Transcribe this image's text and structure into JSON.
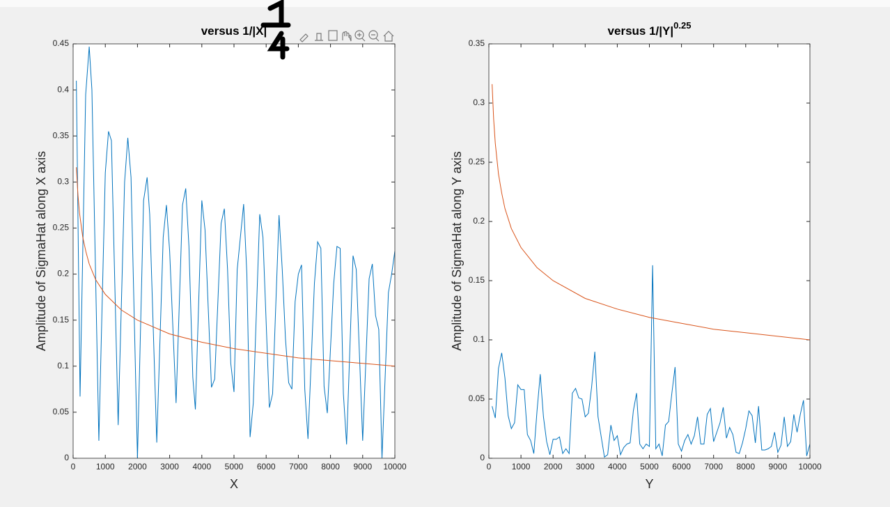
{
  "chart_data": [
    {
      "type": "line",
      "title": "versus 1/|X|",
      "xlabel": "X",
      "ylabel": "Amplitude of SigmaHat along X axis",
      "xlim": [
        0,
        10000
      ],
      "xticks": [
        0,
        1000,
        2000,
        3000,
        4000,
        5000,
        6000,
        7000,
        8000,
        9000,
        10000
      ],
      "ylim": [
        0,
        0.45
      ],
      "yticks": [
        0,
        0.05,
        0.1,
        0.15,
        0.2,
        0.25,
        0.3,
        0.35,
        0.4,
        0.45
      ],
      "series": [
        {
          "color": "#0072bd",
          "x": [
            100,
            216,
            390,
            500,
            584,
            800,
            1000,
            1100,
            1190,
            1400,
            1600,
            1700,
            1800,
            2000,
            2190,
            2300,
            2380,
            2600,
            2800,
            2900,
            3000,
            3200,
            3400,
            3500,
            3600,
            3720,
            3800,
            4000,
            4100,
            4300,
            4400,
            4600,
            4700,
            4800,
            4900,
            5000,
            5100,
            5300,
            5400,
            5500,
            5600,
            5800,
            5900,
            6100,
            6200,
            6400,
            6500,
            6600,
            6700,
            6800,
            6900,
            7000,
            7100,
            7200,
            7300,
            7500,
            7600,
            7700,
            7800,
            7900,
            8100,
            8200,
            8300,
            8400,
            8500,
            8700,
            8800,
            9000,
            9200,
            9300,
            9400,
            9500,
            9600,
            9800,
            9900,
            10000
          ],
          "values": [
            0.41,
            0.067,
            0.395,
            0.447,
            0.4,
            0.019,
            0.31,
            0.355,
            0.345,
            0.036,
            0.3,
            0.348,
            0.305,
            0.0,
            0.28,
            0.305,
            0.265,
            0.017,
            0.24,
            0.275,
            0.225,
            0.06,
            0.275,
            0.293,
            0.23,
            0.088,
            0.053,
            0.28,
            0.248,
            0.077,
            0.086,
            0.255,
            0.271,
            0.205,
            0.103,
            0.072,
            0.205,
            0.276,
            0.2,
            0.023,
            0.06,
            0.265,
            0.24,
            0.055,
            0.07,
            0.264,
            0.205,
            0.13,
            0.082,
            0.075,
            0.17,
            0.2,
            0.21,
            0.075,
            0.021,
            0.19,
            0.235,
            0.228,
            0.078,
            0.049,
            0.19,
            0.23,
            0.228,
            0.07,
            0.015,
            0.22,
            0.205,
            0.019,
            0.195,
            0.211,
            0.155,
            0.14,
            0.0,
            0.18,
            0.2,
            0.225
          ]
        },
        {
          "color": "#d95319",
          "x": [
            100,
            150,
            200,
            300,
            400,
            500,
            700,
            1000,
            1500,
            2000,
            3000,
            4000,
            5000,
            6000,
            7000,
            8000,
            9000,
            10000
          ],
          "values": [
            0.316,
            0.286,
            0.266,
            0.24,
            0.224,
            0.211,
            0.194,
            0.178,
            0.161,
            0.15,
            0.135,
            0.126,
            0.119,
            0.114,
            0.109,
            0.106,
            0.103,
            0.1
          ]
        }
      ]
    },
    {
      "type": "line",
      "title": "versus 1/|Y|",
      "title_superscript": "0.25",
      "xlabel": "Y",
      "ylabel": "Amplitude of SigmaHat along Y axis",
      "xlim": [
        0,
        10000
      ],
      "xticks": [
        0,
        1000,
        2000,
        3000,
        4000,
        5000,
        6000,
        7000,
        8000,
        9000,
        10000
      ],
      "ylim": [
        0,
        0.35
      ],
      "yticks": [
        0,
        0.05,
        0.1,
        0.15,
        0.2,
        0.25,
        0.3,
        0.35
      ],
      "series": [
        {
          "color": "#0072bd",
          "x": [
            100,
            200,
            300,
            400,
            500,
            600,
            700,
            800,
            900,
            1000,
            1100,
            1200,
            1300,
            1400,
            1500,
            1600,
            1700,
            1800,
            1900,
            2000,
            2100,
            2200,
            2300,
            2400,
            2500,
            2600,
            2700,
            2800,
            2900,
            3000,
            3100,
            3200,
            3300,
            3400,
            3500,
            3600,
            3700,
            3800,
            3900,
            4000,
            4100,
            4200,
            4300,
            4400,
            4500,
            4600,
            4700,
            4800,
            4900,
            5000,
            5100,
            5200,
            5300,
            5400,
            5500,
            5600,
            5700,
            5800,
            5900,
            6000,
            6100,
            6200,
            6300,
            6400,
            6500,
            6600,
            6700,
            6800,
            6900,
            7000,
            7100,
            7200,
            7300,
            7400,
            7500,
            7600,
            7700,
            7800,
            7900,
            8000,
            8100,
            8200,
            8300,
            8400,
            8500,
            8600,
            8700,
            8800,
            8900,
            9000,
            9100,
            9200,
            9300,
            9400,
            9500,
            9600,
            9700,
            9800,
            9900,
            10000
          ],
          "values": [
            0.044,
            0.034,
            0.076,
            0.089,
            0.068,
            0.036,
            0.025,
            0.03,
            0.062,
            0.058,
            0.058,
            0.02,
            0.015,
            0.004,
            0.04,
            0.071,
            0.035,
            0.014,
            0.003,
            0.016,
            0.016,
            0.018,
            0.004,
            0.008,
            0.004,
            0.055,
            0.059,
            0.051,
            0.05,
            0.035,
            0.038,
            0.06,
            0.09,
            0.035,
            0.018,
            0.001,
            0.003,
            0.028,
            0.015,
            0.019,
            0.003,
            0.009,
            0.012,
            0.013,
            0.04,
            0.055,
            0.012,
            0.008,
            0.012,
            0.01,
            0.163,
            0.008,
            0.012,
            0.002,
            0.028,
            0.031,
            0.055,
            0.077,
            0.012,
            0.006,
            0.015,
            0.02,
            0.012,
            0.019,
            0.035,
            0.012,
            0.012,
            0.037,
            0.042,
            0.014,
            0.022,
            0.03,
            0.043,
            0.017,
            0.026,
            0.02,
            0.005,
            0.004,
            0.013,
            0.025,
            0.04,
            0.036,
            0.013,
            0.044,
            0.007,
            0.007,
            0.008,
            0.01,
            0.022,
            0.005,
            0.011,
            0.035,
            0.01,
            0.014,
            0.037,
            0.022,
            0.037,
            0.049,
            0.002,
            0.012
          ]
        },
        {
          "color": "#d95319",
          "x": [
            100,
            150,
            200,
            300,
            400,
            500,
            700,
            1000,
            1500,
            2000,
            3000,
            4000,
            5000,
            6000,
            7000,
            8000,
            9000,
            10000
          ],
          "values": [
            0.316,
            0.286,
            0.266,
            0.24,
            0.224,
            0.211,
            0.194,
            0.178,
            0.161,
            0.15,
            0.135,
            0.126,
            0.119,
            0.114,
            0.109,
            0.106,
            0.103,
            0.1
          ]
        }
      ]
    }
  ]
}
